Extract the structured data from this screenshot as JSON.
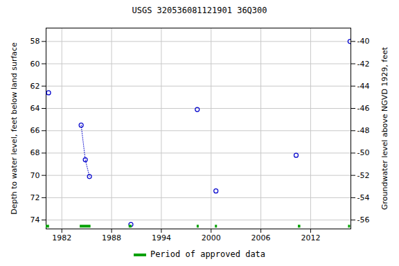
{
  "chart_data": {
    "type": "scatter",
    "title": "USGS 320536081121901 36Q300",
    "y_label": "Depth to water level, feet below land surface",
    "y2_label": "Groundwater level above NGVD 1929, feet",
    "x": [
      1980.4,
      null,
      1984.33,
      1984.83,
      1985.33,
      null,
      1990.33,
      null,
      1998.33,
      null,
      2000.58,
      null,
      2010.25,
      null,
      2016.75
    ],
    "series": [
      {
        "name": "Depth to water level",
        "color": "#0000cc",
        "marker": "open_circle",
        "line_style": "dotted",
        "values": [
          62.6,
          null,
          65.5,
          68.6,
          70.1,
          null,
          74.4,
          null,
          64.1,
          null,
          71.4,
          null,
          68.2,
          null,
          58.0
        ]
      }
    ],
    "approved_periods": {
      "name": "Period of approved data",
      "color": "#00a000",
      "ranges": [
        [
          1980.1,
          1980.5
        ],
        [
          1984.2,
          1985.5
        ],
        [
          1990.1,
          1990.45
        ],
        [
          1998.3,
          1998.55
        ],
        [
          2000.5,
          2000.75
        ],
        [
          2010.5,
          2010.8
        ],
        [
          2016.55,
          2016.8
        ]
      ]
    },
    "xlim": [
      1980.1,
      2016.85
    ],
    "xticks": [
      1982,
      1988,
      1994,
      2000,
      2006,
      2012
    ],
    "ylim": [
      56.8,
      74.8
    ],
    "yticks": [
      58,
      60,
      62,
      64,
      66,
      68,
      70,
      72,
      74
    ],
    "y2lim": [
      -38.8,
      -56.8
    ],
    "y2ticks": [
      -40,
      -42,
      -44,
      -46,
      -48,
      -50,
      -52,
      -54,
      -56
    ],
    "grid": true
  }
}
